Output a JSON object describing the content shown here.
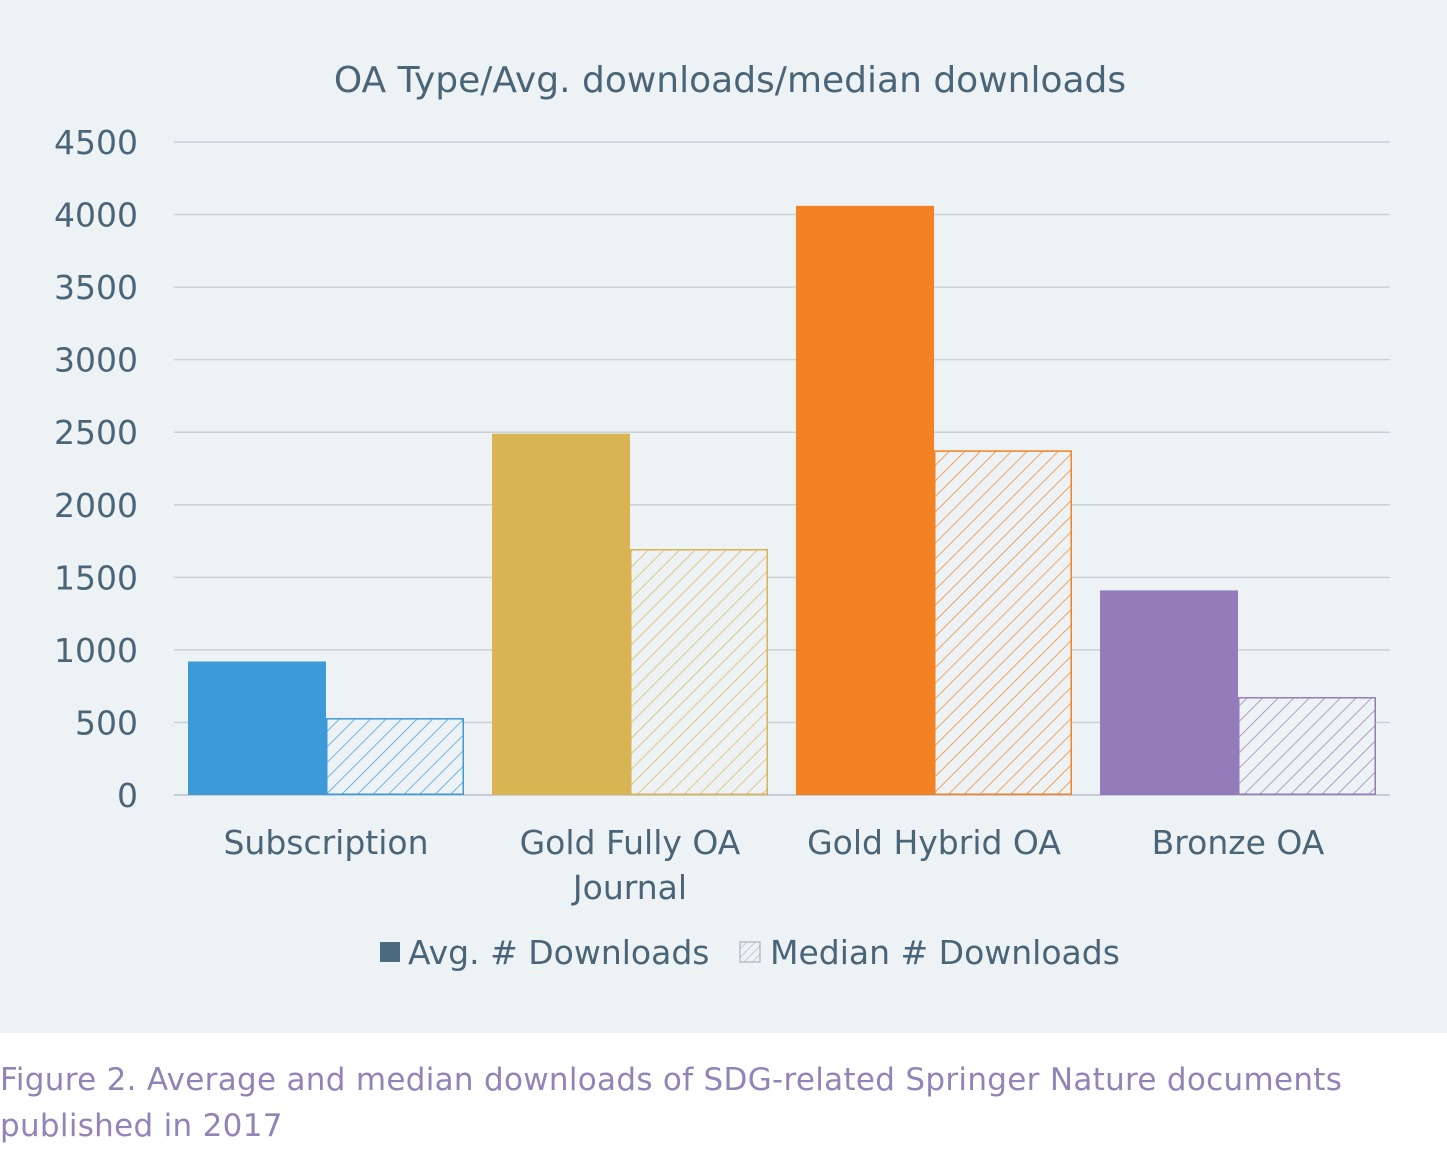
{
  "chart_data": {
    "type": "bar",
    "title": "OA Type/Avg. downloads/median downloads",
    "xlabel": "",
    "ylabel": "",
    "categories": [
      [
        "Subscription"
      ],
      [
        "Gold Fully OA",
        "Journal"
      ],
      [
        "Gold Hybrid OA"
      ],
      [
        "Bronze OA"
      ]
    ],
    "category_colors": [
      "#3d9ad8",
      "#d9b452",
      "#f28222",
      "#947cba"
    ],
    "series": [
      {
        "name": "Avg. # Downloads",
        "values": [
          920,
          2490,
          4060,
          1410
        ],
        "style": "solid"
      },
      {
        "name": "Median # Downloads",
        "values": [
          525,
          1690,
          2370,
          670
        ],
        "style": "hatched"
      }
    ],
    "ylim": [
      0,
      4500
    ],
    "yticks": [
      0,
      500,
      1000,
      1500,
      2000,
      2500,
      3000,
      3500,
      4000,
      4500
    ],
    "grid": true,
    "legend_position": "bottom",
    "legend_swatch_color": "#4a6a80"
  },
  "caption": "Figure 2. Average and median downloads of SDG-related Springer Nature documents published in 2017"
}
